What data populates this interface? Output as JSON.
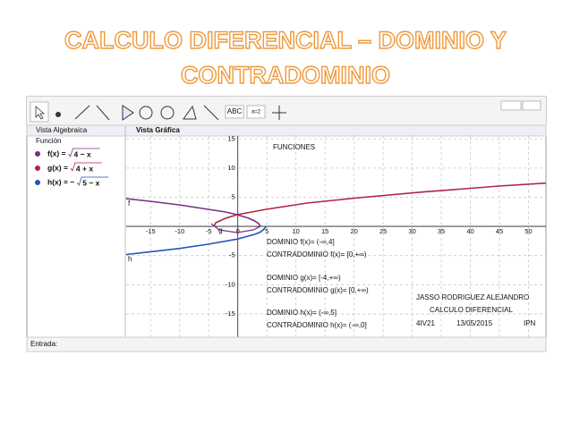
{
  "slide": {
    "title_line1": "CALCULO DIFERENCIAL – DOMINIO Y",
    "title_line2": "CONTRADOMINIO"
  },
  "toolbar": {
    "text_tool": "ABC",
    "slider_tool": "a=2"
  },
  "algebra_view": {
    "header": "Vista Algebraica",
    "group": "Función",
    "items": [
      {
        "lhs": "f(x) =",
        "radicand": "4 − x",
        "color": "#7b2d8b"
      },
      {
        "lhs": "g(x) =",
        "radicand": "4 + x",
        "color": "#b02444"
      },
      {
        "lhs": "h(x) = −",
        "radicand": "5 − x",
        "color": "#2156b8"
      }
    ]
  },
  "graphics_view": {
    "header": "Vista Gráfica",
    "xlim": [
      -19.2,
      53
    ],
    "ylim": [
      -19,
      15.5
    ],
    "xticks": [
      -15,
      -10,
      -5,
      0,
      5,
      10,
      15,
      20,
      25,
      30,
      35,
      40,
      45,
      50
    ],
    "yticks": [
      15,
      10,
      5,
      -5,
      -10,
      -15
    ],
    "curve_labels": [
      "f",
      "g",
      "h"
    ],
    "heading": "FUNCIONES",
    "notes": [
      "DOMINIO f(x)= (-∞,4]",
      "CONTRADOMINIO f(x)= [0,+∞)",
      "DOMINIO g(x)= [-4,+∞)",
      "CONTRADOMINIO g(x)= [0,+∞)",
      "DOMINIO h(x)= (-∞,5]",
      "CONTRADOMINIO h(x)= (-∞,0]"
    ],
    "author": "JASSO RODRIGUEZ ALEJANDRO",
    "course": "CALCULO DIFERENCIAL",
    "group": "4IV21",
    "date": "13/05/2015",
    "school": "IPN"
  },
  "input_bar": {
    "label": "Entrada:"
  }
}
